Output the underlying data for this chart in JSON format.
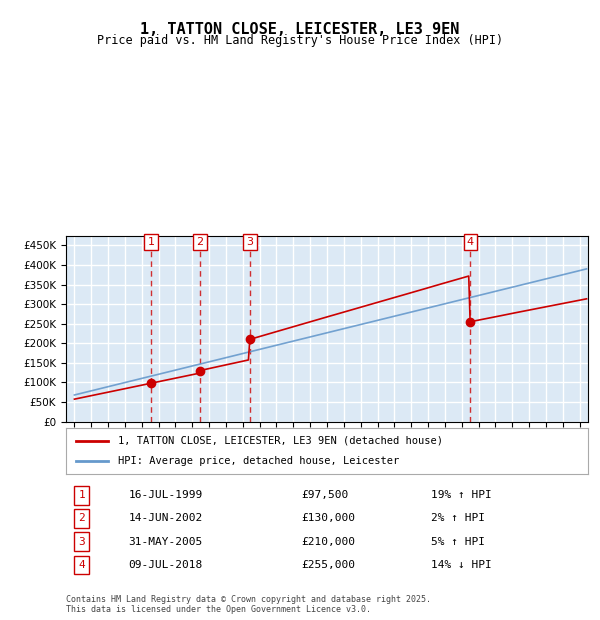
{
  "title": "1, TATTON CLOSE, LEICESTER, LE3 9EN",
  "subtitle": "Price paid vs. HM Land Registry's House Price Index (HPI)",
  "legend_label_red": "1, TATTON CLOSE, LEICESTER, LE3 9EN (detached house)",
  "legend_label_blue": "HPI: Average price, detached house, Leicester",
  "footer_line1": "Contains HM Land Registry data © Crown copyright and database right 2025.",
  "footer_line2": "This data is licensed under the Open Government Licence v3.0.",
  "sales": [
    {
      "num": 1,
      "date": "16-JUL-1999",
      "price": 97500,
      "rel": "19% ↑ HPI",
      "year": 1999.54
    },
    {
      "num": 2,
      "date": "14-JUN-2002",
      "price": 130000,
      "rel": "2% ↑ HPI",
      "year": 2002.45
    },
    {
      "num": 3,
      "date": "31-MAY-2005",
      "price": 210000,
      "rel": "5% ↑ HPI",
      "year": 2005.41
    },
    {
      "num": 4,
      "date": "09-JUL-2018",
      "price": 255000,
      "rel": "14% ↓ HPI",
      "year": 2018.52
    }
  ],
  "ylim": [
    0,
    475000
  ],
  "xlim_start": 1994.5,
  "xlim_end": 2025.5,
  "background_color": "#dce9f5",
  "plot_bg": "#dce9f5",
  "grid_color": "#ffffff",
  "red_color": "#cc0000",
  "blue_color": "#6699cc",
  "dashed_color": "#cc0000"
}
